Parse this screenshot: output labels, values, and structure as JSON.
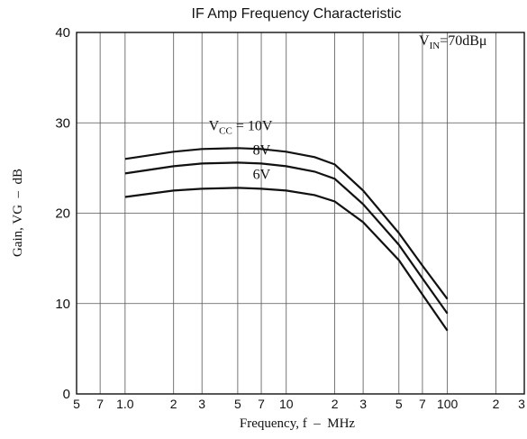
{
  "chart_data": {
    "type": "line",
    "title": "IF Amp Frequency Characteristic",
    "xlabel": "Frequency, f  –  MHz",
    "ylabel": "Gain, VG  –  dB",
    "xscale": "log",
    "xlim": [
      0.5,
      300
    ],
    "ylim": [
      0,
      40
    ],
    "yticks": [
      0,
      10,
      20,
      30,
      40
    ],
    "xticks": [
      {
        "value": 0.5,
        "label": "5"
      },
      {
        "value": 0.7,
        "label": "7"
      },
      {
        "value": 1,
        "label": "1.0"
      },
      {
        "value": 2,
        "label": "2"
      },
      {
        "value": 3,
        "label": "3"
      },
      {
        "value": 5,
        "label": "5"
      },
      {
        "value": 7,
        "label": "7"
      },
      {
        "value": 10,
        "label": "10"
      },
      {
        "value": 20,
        "label": "2"
      },
      {
        "value": 30,
        "label": "3"
      },
      {
        "value": 50,
        "label": "5"
      },
      {
        "value": 70,
        "label": "7"
      },
      {
        "value": 100,
        "label": "100"
      },
      {
        "value": 200,
        "label": "2"
      },
      {
        "value": 300,
        "label": "3"
      }
    ],
    "grid": true,
    "condition": {
      "main": "V",
      "sub": "IN",
      "rest": "=70dBμ"
    },
    "series": [
      {
        "label": {
          "main": "V",
          "sub": "CC",
          "rest": " = 10V"
        },
        "x": [
          1,
          2,
          3,
          5,
          7,
          10,
          15,
          20,
          30,
          50,
          70,
          100
        ],
        "y": [
          26,
          26.8,
          27.1,
          27.2,
          27.1,
          26.8,
          26.2,
          25.4,
          22.5,
          17.8,
          14.2,
          10.5
        ]
      },
      {
        "label": {
          "main": "",
          "sub": "",
          "rest": "8V"
        },
        "x": [
          1,
          2,
          3,
          5,
          7,
          10,
          15,
          20,
          30,
          50,
          70,
          100
        ],
        "y": [
          24.4,
          25.2,
          25.5,
          25.6,
          25.5,
          25.2,
          24.6,
          23.8,
          21,
          16.5,
          12.8,
          8.9
        ]
      },
      {
        "label": {
          "main": "",
          "sub": "",
          "rest": "6V"
        },
        "x": [
          1,
          2,
          3,
          5,
          7,
          10,
          15,
          20,
          30,
          50,
          70,
          100
        ],
        "y": [
          21.8,
          22.5,
          22.7,
          22.8,
          22.7,
          22.5,
          22,
          21.3,
          19,
          14.8,
          11,
          7
        ]
      }
    ]
  }
}
